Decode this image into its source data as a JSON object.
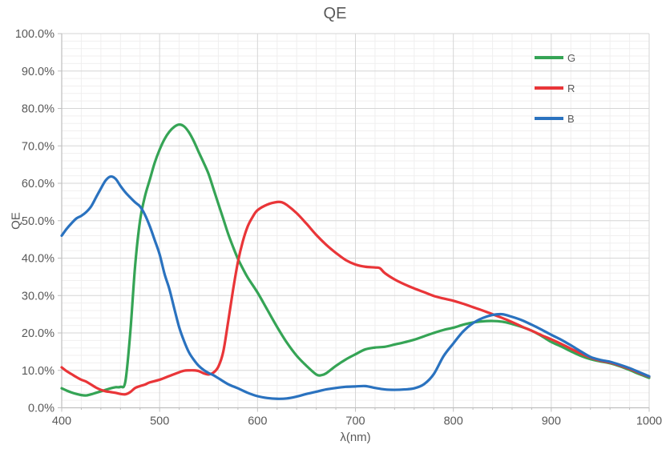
{
  "chart_data": {
    "type": "line",
    "title": "QE",
    "xlabel": "λ(nm)",
    "ylabel": "QE",
    "xlim": [
      400,
      1000
    ],
    "ylim": [
      0,
      100
    ],
    "x_major_step": 100,
    "x_minor_step": 20,
    "y_major_step": 10,
    "y_minor_step": 2,
    "x_tick_labels": [
      "400",
      "500",
      "600",
      "700",
      "800",
      "900",
      "1000"
    ],
    "y_tick_labels": [
      "0.0%",
      "10.0%",
      "20.0%",
      "30.0%",
      "40.0%",
      "50.0%",
      "60.0%",
      "70.0%",
      "80.0%",
      "90.0%",
      "100.0%"
    ],
    "grid": "major+minor",
    "legend_position": "top-right-inside",
    "colors": {
      "axis_text": "#595959",
      "major_grid": "#d6d6d6",
      "minor_grid": "#f0efef",
      "axis_line": "#bfbfbf"
    },
    "series": [
      {
        "name": "G",
        "color": "#35a455",
        "points": [
          [
            400,
            5.2
          ],
          [
            405,
            4.6
          ],
          [
            410,
            4.1
          ],
          [
            415,
            3.7
          ],
          [
            420,
            3.4
          ],
          [
            425,
            3.3
          ],
          [
            430,
            3.6
          ],
          [
            435,
            4.0
          ],
          [
            440,
            4.4
          ],
          [
            445,
            4.8
          ],
          [
            450,
            5.2
          ],
          [
            455,
            5.5
          ],
          [
            460,
            5.6
          ],
          [
            465,
            7.0
          ],
          [
            470,
            20.0
          ],
          [
            475,
            38.0
          ],
          [
            480,
            50.0
          ],
          [
            485,
            56.5
          ],
          [
            490,
            61.0
          ],
          [
            495,
            65.5
          ],
          [
            500,
            69.0
          ],
          [
            505,
            71.8
          ],
          [
            510,
            73.8
          ],
          [
            515,
            75.1
          ],
          [
            520,
            75.7
          ],
          [
            525,
            75.2
          ],
          [
            530,
            73.6
          ],
          [
            535,
            71.2
          ],
          [
            540,
            68.3
          ],
          [
            545,
            65.5
          ],
          [
            550,
            62.5
          ],
          [
            555,
            58.5
          ],
          [
            560,
            54.5
          ],
          [
            565,
            50.5
          ],
          [
            570,
            46.5
          ],
          [
            575,
            43.0
          ],
          [
            580,
            39.8
          ],
          [
            585,
            37.2
          ],
          [
            590,
            34.8
          ],
          [
            600,
            30.8
          ],
          [
            610,
            26.2
          ],
          [
            620,
            21.6
          ],
          [
            630,
            17.4
          ],
          [
            640,
            13.9
          ],
          [
            650,
            11.2
          ],
          [
            660,
            8.9
          ],
          [
            665,
            8.7
          ],
          [
            670,
            9.2
          ],
          [
            680,
            11.2
          ],
          [
            690,
            12.9
          ],
          [
            700,
            14.3
          ],
          [
            710,
            15.6
          ],
          [
            720,
            16.1
          ],
          [
            730,
            16.3
          ],
          [
            740,
            16.9
          ],
          [
            750,
            17.5
          ],
          [
            760,
            18.2
          ],
          [
            770,
            19.1
          ],
          [
            780,
            20.0
          ],
          [
            790,
            20.8
          ],
          [
            800,
            21.4
          ],
          [
            810,
            22.2
          ],
          [
            820,
            22.8
          ],
          [
            830,
            23.1
          ],
          [
            840,
            23.2
          ],
          [
            850,
            23.0
          ],
          [
            860,
            22.4
          ],
          [
            870,
            21.6
          ],
          [
            880,
            20.6
          ],
          [
            890,
            19.2
          ],
          [
            900,
            17.6
          ],
          [
            910,
            16.4
          ],
          [
            920,
            15.1
          ],
          [
            930,
            13.9
          ],
          [
            940,
            13.0
          ],
          [
            950,
            12.4
          ],
          [
            960,
            11.9
          ],
          [
            970,
            11.1
          ],
          [
            980,
            10.1
          ],
          [
            990,
            9.0
          ],
          [
            1000,
            8.0
          ]
        ]
      },
      {
        "name": "R",
        "color": "#e93538",
        "points": [
          [
            400,
            10.8
          ],
          [
            405,
            9.8
          ],
          [
            410,
            9.0
          ],
          [
            415,
            8.2
          ],
          [
            420,
            7.5
          ],
          [
            425,
            7.0
          ],
          [
            430,
            6.2
          ],
          [
            435,
            5.4
          ],
          [
            440,
            4.8
          ],
          [
            445,
            4.4
          ],
          [
            450,
            4.2
          ],
          [
            455,
            4.0
          ],
          [
            460,
            3.7
          ],
          [
            465,
            3.6
          ],
          [
            470,
            4.2
          ],
          [
            475,
            5.3
          ],
          [
            480,
            5.8
          ],
          [
            485,
            6.2
          ],
          [
            490,
            6.8
          ],
          [
            500,
            7.5
          ],
          [
            510,
            8.5
          ],
          [
            520,
            9.5
          ],
          [
            525,
            9.9
          ],
          [
            530,
            10.0
          ],
          [
            535,
            10.0
          ],
          [
            540,
            9.8
          ],
          [
            545,
            9.2
          ],
          [
            550,
            8.9
          ],
          [
            555,
            9.4
          ],
          [
            560,
            11.0
          ],
          [
            565,
            15.0
          ],
          [
            570,
            23.0
          ],
          [
            575,
            31.5
          ],
          [
            580,
            39.0
          ],
          [
            585,
            44.5
          ],
          [
            590,
            48.5
          ],
          [
            595,
            51.0
          ],
          [
            600,
            52.8
          ],
          [
            610,
            54.3
          ],
          [
            620,
            55.0
          ],
          [
            625,
            54.9
          ],
          [
            630,
            54.2
          ],
          [
            640,
            52.0
          ],
          [
            650,
            49.2
          ],
          [
            660,
            46.2
          ],
          [
            670,
            43.6
          ],
          [
            680,
            41.4
          ],
          [
            690,
            39.5
          ],
          [
            700,
            38.3
          ],
          [
            710,
            37.7
          ],
          [
            720,
            37.5
          ],
          [
            725,
            37.3
          ],
          [
            730,
            36.0
          ],
          [
            740,
            34.3
          ],
          [
            750,
            33.0
          ],
          [
            760,
            31.9
          ],
          [
            770,
            30.9
          ],
          [
            780,
            29.9
          ],
          [
            790,
            29.2
          ],
          [
            800,
            28.6
          ],
          [
            810,
            27.8
          ],
          [
            820,
            26.9
          ],
          [
            830,
            26.0
          ],
          [
            840,
            25.0
          ],
          [
            850,
            24.0
          ],
          [
            860,
            22.9
          ],
          [
            870,
            21.7
          ],
          [
            880,
            20.6
          ],
          [
            890,
            19.4
          ],
          [
            900,
            18.3
          ],
          [
            910,
            17.1
          ],
          [
            920,
            15.8
          ],
          [
            930,
            14.5
          ],
          [
            940,
            13.4
          ],
          [
            950,
            12.6
          ],
          [
            960,
            12.1
          ],
          [
            970,
            11.3
          ],
          [
            980,
            10.4
          ],
          [
            990,
            9.3
          ],
          [
            1000,
            8.3
          ]
        ]
      },
      {
        "name": "B",
        "color": "#2a72bf",
        "points": [
          [
            400,
            46.0
          ],
          [
            405,
            47.8
          ],
          [
            410,
            49.3
          ],
          [
            415,
            50.6
          ],
          [
            420,
            51.3
          ],
          [
            425,
            52.3
          ],
          [
            430,
            53.8
          ],
          [
            435,
            56.2
          ],
          [
            440,
            58.6
          ],
          [
            445,
            60.8
          ],
          [
            450,
            61.8
          ],
          [
            455,
            61.2
          ],
          [
            460,
            59.3
          ],
          [
            465,
            57.6
          ],
          [
            470,
            56.2
          ],
          [
            475,
            54.9
          ],
          [
            480,
            53.8
          ],
          [
            485,
            51.6
          ],
          [
            490,
            48.5
          ],
          [
            495,
            44.8
          ],
          [
            500,
            41.0
          ],
          [
            505,
            35.8
          ],
          [
            510,
            31.7
          ],
          [
            515,
            26.5
          ],
          [
            520,
            21.5
          ],
          [
            525,
            17.8
          ],
          [
            530,
            14.8
          ],
          [
            535,
            12.8
          ],
          [
            540,
            11.2
          ],
          [
            545,
            10.1
          ],
          [
            550,
            9.3
          ],
          [
            555,
            8.7
          ],
          [
            560,
            7.9
          ],
          [
            570,
            6.3
          ],
          [
            580,
            5.2
          ],
          [
            590,
            4.0
          ],
          [
            600,
            3.1
          ],
          [
            610,
            2.6
          ],
          [
            620,
            2.4
          ],
          [
            630,
            2.5
          ],
          [
            640,
            3.0
          ],
          [
            650,
            3.7
          ],
          [
            660,
            4.3
          ],
          [
            670,
            4.9
          ],
          [
            680,
            5.3
          ],
          [
            690,
            5.6
          ],
          [
            700,
            5.7
          ],
          [
            710,
            5.8
          ],
          [
            720,
            5.3
          ],
          [
            730,
            4.9
          ],
          [
            740,
            4.8
          ],
          [
            750,
            4.9
          ],
          [
            760,
            5.2
          ],
          [
            770,
            6.3
          ],
          [
            780,
            9.0
          ],
          [
            790,
            13.8
          ],
          [
            800,
            17.2
          ],
          [
            810,
            20.4
          ],
          [
            820,
            22.6
          ],
          [
            830,
            24.0
          ],
          [
            840,
            24.8
          ],
          [
            850,
            25.0
          ],
          [
            860,
            24.3
          ],
          [
            870,
            23.4
          ],
          [
            880,
            22.2
          ],
          [
            890,
            20.9
          ],
          [
            900,
            19.5
          ],
          [
            910,
            18.2
          ],
          [
            920,
            16.7
          ],
          [
            930,
            15.1
          ],
          [
            940,
            13.6
          ],
          [
            950,
            12.8
          ],
          [
            960,
            12.3
          ],
          [
            970,
            11.5
          ],
          [
            980,
            10.6
          ],
          [
            990,
            9.5
          ],
          [
            1000,
            8.4
          ]
        ]
      }
    ]
  }
}
